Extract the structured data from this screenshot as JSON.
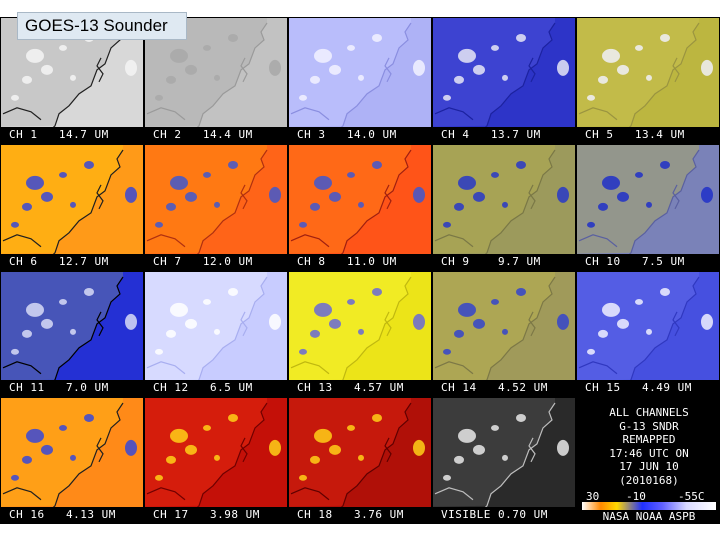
{
  "title": "GOES-13 Sounder",
  "panels": [
    {
      "label": "CH 1   14.7 UM",
      "base": "#d8d8d8",
      "land": "#bcbcbc",
      "coast": "#202020",
      "cloud": "#f4f4f4"
    },
    {
      "label": "CH 2   14.4 UM",
      "base": "#c2c2c2",
      "land": "#b2b2b2",
      "coast": "#9a9a9a",
      "cloud": "#a8a8a8"
    },
    {
      "label": "CH 3   14.0 UM",
      "base": "#aeb2f6",
      "land": "#c2c6ff",
      "coast": "#8a8ee0",
      "cloud": "#f2f2ff"
    },
    {
      "label": "CH 4   13.7 UM",
      "base": "#2d34c8",
      "land": "#4a50d8",
      "coast": "#1c22a0",
      "cloud": "#e6e6f6"
    },
    {
      "label": "CH 5   13.4 UM",
      "base": "#bcb640",
      "land": "#c6c050",
      "coast": "#9a9440",
      "cloud": "#f0f0f8"
    },
    {
      "label": "CH 6   12.7 UM",
      "base": "#ff9a18",
      "land": "#ffc010",
      "coast": "#202020",
      "cloud": "#3848d8"
    },
    {
      "label": "CH 7   12.0 UM",
      "base": "#ff6418",
      "land": "#ff8a10",
      "coast": "#b03010",
      "cloud": "#4058d0"
    },
    {
      "label": "CH 8   11.0 UM",
      "base": "#ff5418",
      "land": "#ff7a18",
      "coast": "#a02010",
      "cloud": "#4058d0"
    },
    {
      "label": "CH 9    9.7 UM",
      "base": "#9c9a5c",
      "land": "#b0ac50",
      "coast": "#7a7846",
      "cloud": "#2838c8"
    },
    {
      "label": "CH 10   7.5 UM",
      "base": "#7a82b8",
      "land": "#a8a868",
      "coast": "#5a60a0",
      "cloud": "#2030c8"
    },
    {
      "label": "CH 11   7.0 UM",
      "base": "#2430d4",
      "land": "#6474a0",
      "coast": "#000000",
      "cloud": "#d8dcf6"
    },
    {
      "label": "CH 12   6.5 UM",
      "base": "#c8ccff",
      "land": "#e4e6ff",
      "coast": "#a8aef0",
      "cloud": "#ffffff"
    },
    {
      "label": "CH 13   4.57 UM",
      "base": "#ece418",
      "land": "#f6f030",
      "coast": "#c0b810",
      "cloud": "#6868d8"
    },
    {
      "label": "CH 14   4.52 UM",
      "base": "#a09a5a",
      "land": "#b8b050",
      "coast": "#7c7846",
      "cloud": "#3444cc"
    },
    {
      "label": "CH 15   4.49 UM",
      "base": "#4650e0",
      "land": "#6068e8",
      "coast": "#3038c0",
      "cloud": "#f0f0ff"
    },
    {
      "label": "CH 16   4.13 UM",
      "base": "#ff8a18",
      "land": "#ffb018",
      "coast": "#202020",
      "cloud": "#3848d8"
    },
    {
      "label": "CH 17   3.98 UM",
      "base": "#c41008",
      "land": "#e42810",
      "coast": "#700000",
      "cloud": "#ffd018"
    },
    {
      "label": "CH 18   3.76 UM",
      "base": "#b01008",
      "land": "#d82010",
      "coast": "#600000",
      "cloud": "#ffd018"
    },
    {
      "label": "VISIBLE 0.70 UM",
      "base": "#2a2a2a",
      "land": "#4a4a4a",
      "coast": "#bdbdbd",
      "cloud": "#e8e8e8"
    }
  ],
  "info": {
    "lines": [
      "ALL CHANNELS",
      "G-13 SNDR",
      "REMAPPED",
      "17:46 UTC ON",
      "17 JUN 10",
      "(2010168)"
    ],
    "scale_labels": [
      "30",
      "-10",
      "-55C"
    ],
    "agency": "NASA NOAA ASPB"
  }
}
